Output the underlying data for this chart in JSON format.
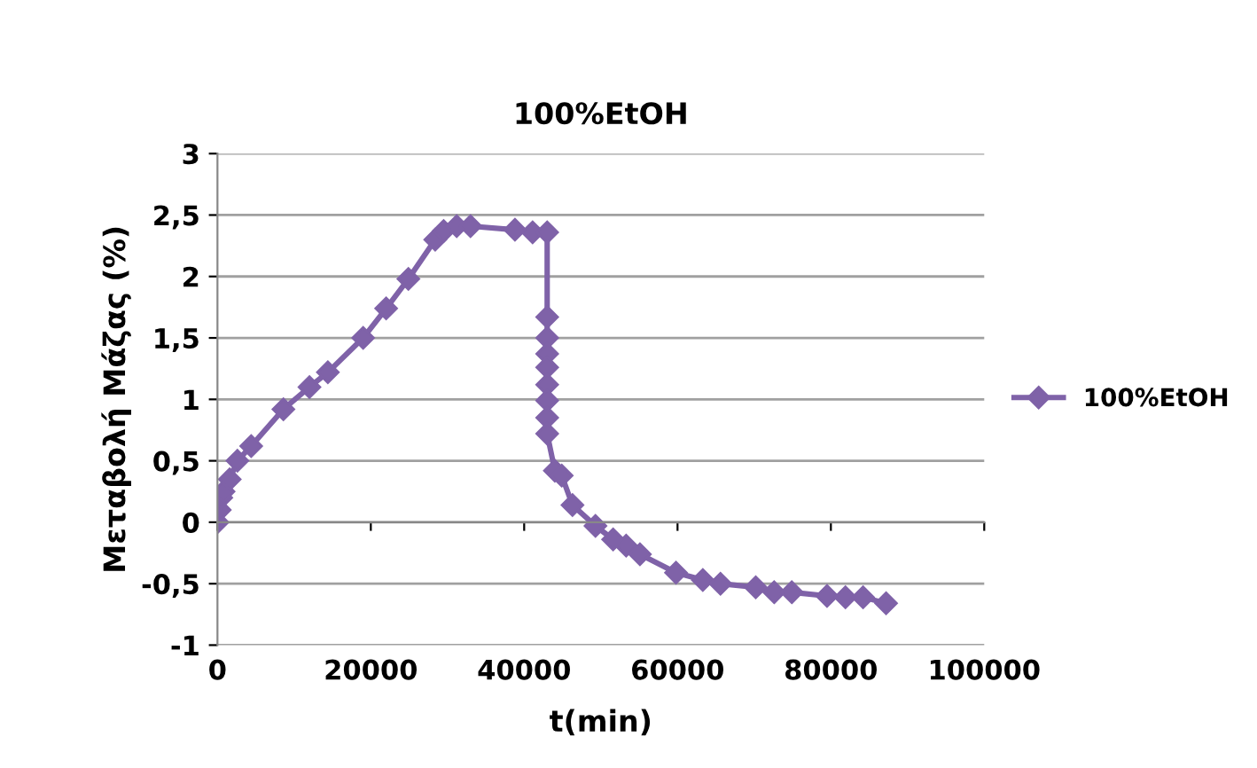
{
  "chart_data": {
    "type": "line",
    "title": "100%EtOH",
    "xlabel": "t(min)",
    "ylabel": "Μεταβολή Μάζας (%)",
    "series": [
      {
        "name": "100%EtOH",
        "color": "#7f62a8",
        "x": [
          0,
          300,
          500,
          800,
          1600,
          2600,
          4400,
          8600,
          12000,
          14400,
          19000,
          22000,
          24900,
          28400,
          29500,
          31200,
          33000,
          38800,
          41100,
          43000,
          43000,
          43000,
          43000,
          43000,
          43000,
          43000,
          43000,
          43000,
          44000,
          44900,
          46300,
          49300,
          51600,
          53300,
          55100,
          59800,
          63300,
          65600,
          70200,
          72600,
          74900,
          79500,
          81900,
          84200,
          87200
        ],
        "values": [
          0,
          0.1,
          0.2,
          0.25,
          0.35,
          0.5,
          0.62,
          0.92,
          1.1,
          1.22,
          1.5,
          1.74,
          1.98,
          2.3,
          2.37,
          2.41,
          2.41,
          2.38,
          2.36,
          2.36,
          1.67,
          1.5,
          1.37,
          1.26,
          1.12,
          0.99,
          0.85,
          0.72,
          0.42,
          0.38,
          0.14,
          -0.03,
          -0.14,
          -0.19,
          -0.26,
          -0.41,
          -0.47,
          -0.5,
          -0.53,
          -0.57,
          -0.57,
          -0.6,
          -0.61,
          -0.61,
          -0.66
        ]
      }
    ],
    "xlim": [
      0,
      100000
    ],
    "xticks": [
      0,
      20000,
      40000,
      60000,
      80000,
      100000
    ],
    "ylim": [
      -1,
      3
    ],
    "yticks": [
      {
        "value": -1,
        "label": "-1"
      },
      {
        "value": -0.5,
        "label": "-0,5"
      },
      0,
      {
        "value": 0.5,
        "label": "0,5"
      },
      1,
      {
        "value": 1.5,
        "label": "1,5"
      },
      2,
      {
        "value": 2.5,
        "label": "2,5"
      },
      3
    ],
    "grid": "y",
    "legend": "right",
    "marker": "diamond",
    "line_style": "solid"
  }
}
